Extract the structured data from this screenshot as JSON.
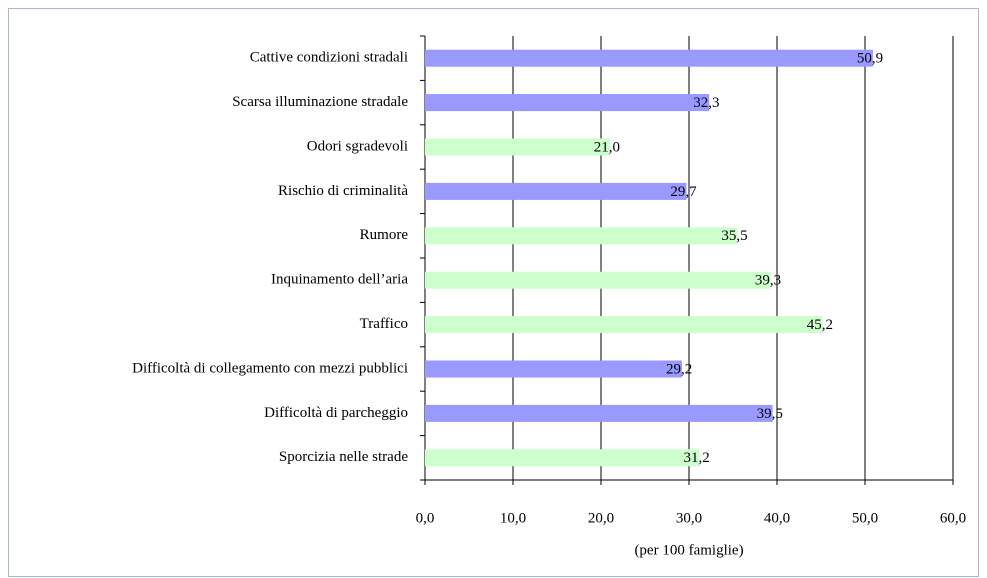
{
  "chart_data": {
    "type": "barh",
    "xlabel": "(per 100 famiglie)",
    "categories": [
      "Cattive condizioni stradali",
      "Scarsa illuminazione stradale",
      "Odori sgradevoli",
      "Rischio di criminalità",
      "Rumore",
      "Inquinamento dell’aria",
      "Traffico",
      "Difficoltà di collegamento con mezzi pubblici",
      "Difficoltà di parcheggio",
      "Sporcizia nelle strade"
    ],
    "values": [
      50.9,
      32.3,
      21.0,
      29.7,
      35.5,
      39.3,
      45.2,
      29.2,
      39.5,
      31.2
    ],
    "value_labels": [
      "50,9",
      "32,3",
      "21,0",
      "29,7",
      "35,5",
      "39,3",
      "45,2",
      "29,2",
      "39,5",
      "31,2"
    ],
    "colors": [
      "#9999ff",
      "#9999ff",
      "#ccffcc",
      "#9999ff",
      "#ccffcc",
      "#ccffcc",
      "#ccffcc",
      "#9999ff",
      "#9999ff",
      "#ccffcc"
    ],
    "xlim": [
      0,
      60
    ],
    "xticks": [
      {
        "value": 0,
        "label": "0,0"
      },
      {
        "value": 10,
        "label": "10,0"
      },
      {
        "value": 20,
        "label": "20,0"
      },
      {
        "value": 30,
        "label": "30,0"
      },
      {
        "value": 40,
        "label": "40,0"
      },
      {
        "value": 50,
        "label": "50,0"
      },
      {
        "value": 60,
        "label": "60,0"
      }
    ],
    "grid": true
  }
}
